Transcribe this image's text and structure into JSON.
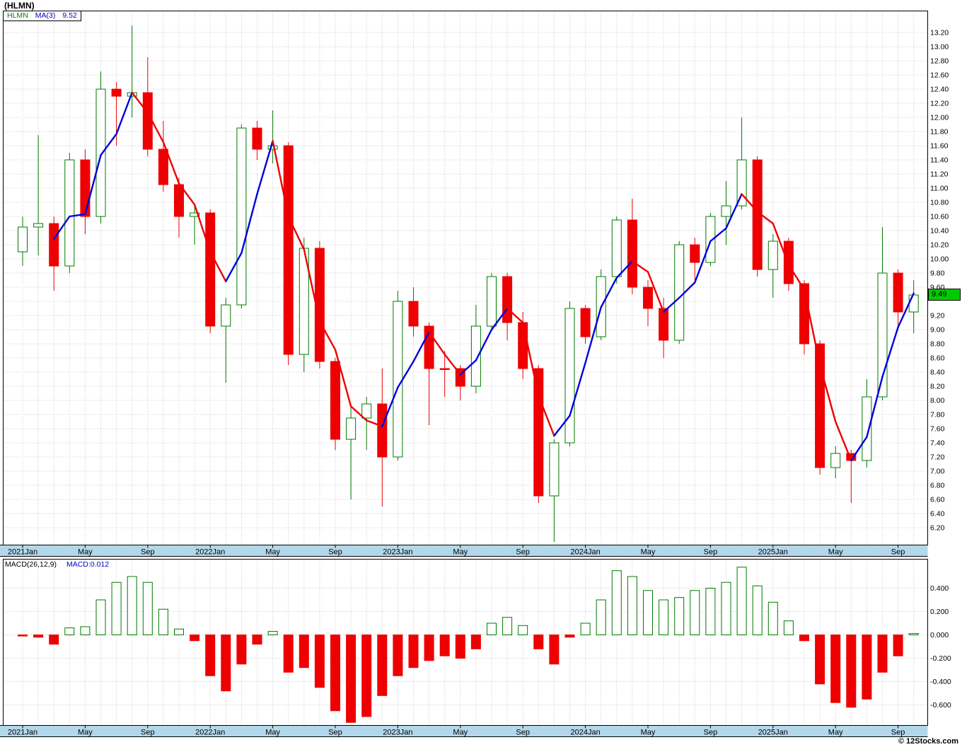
{
  "title": "(HLMN)",
  "legend": {
    "symbol": "HLMN",
    "ma_label": "MA(3)",
    "ma_value": "9.52"
  },
  "current_price_badge": "9.49",
  "macd_panel": {
    "legend_label": "MACD(26,12,9)",
    "legend_value": "MACD:0.012"
  },
  "copyright": "© 12Stocks.com",
  "colors": {
    "up": "#007a00",
    "down": "#ee0000",
    "ma_up": "#0000dd",
    "ma_down": "#ee0000",
    "band": "#b3d7ea",
    "grid": "#c9c9c9",
    "badge_bg": "#00cc00",
    "legend_symbol_green": "#008000",
    "legend_blue": "#0000cc"
  },
  "axes": {
    "price_tick_labels": [
      "13.20",
      "13.00",
      "12.80",
      "12.60",
      "12.40",
      "12.20",
      "12.00",
      "11.80",
      "11.60",
      "11.40",
      "11.20",
      "11.00",
      "10.80",
      "10.60",
      "10.40",
      "10.20",
      "10.00",
      "9.80",
      "9.60",
      "9.20",
      "9.00",
      "8.80",
      "8.60",
      "8.40",
      "8.20",
      "8.00",
      "7.80",
      "7.60",
      "7.40",
      "7.20",
      "7.00",
      "6.80",
      "6.60",
      "6.40",
      "6.20"
    ],
    "macd_tick_labels": [
      "0.400",
      "0.200",
      "0.000",
      "-0.200",
      "-0.400",
      "-0.600"
    ],
    "x_ticks": [
      {
        "label": "2021Jan",
        "month_index": 0
      },
      {
        "label": "May",
        "month_index": 4
      },
      {
        "label": "Sep",
        "month_index": 8
      },
      {
        "label": "2022Jan",
        "month_index": 12
      },
      {
        "label": "May",
        "month_index": 16
      },
      {
        "label": "Sep",
        "month_index": 20
      },
      {
        "label": "2023Jan",
        "month_index": 24
      },
      {
        "label": "May",
        "month_index": 28
      },
      {
        "label": "Sep",
        "month_index": 32
      },
      {
        "label": "2024Jan",
        "month_index": 36
      },
      {
        "label": "May",
        "month_index": 40
      },
      {
        "label": "Sep",
        "month_index": 44
      },
      {
        "label": "2025Jan",
        "month_index": 48
      },
      {
        "label": "May",
        "month_index": 52
      },
      {
        "label": "Sep",
        "month_index": 56
      }
    ]
  },
  "chart_data": [
    {
      "type": "candlestick",
      "name": "HLMN monthly price",
      "ylabel": "Price",
      "xlabel": "",
      "ylim": [
        5.96,
        13.51
      ],
      "grid": true,
      "x": [
        "2021-01",
        "2021-02",
        "2021-03",
        "2021-04",
        "2021-05",
        "2021-06",
        "2021-07",
        "2021-08",
        "2021-09",
        "2021-10",
        "2021-11",
        "2021-12",
        "2022-01",
        "2022-02",
        "2022-03",
        "2022-04",
        "2022-05",
        "2022-06",
        "2022-07",
        "2022-08",
        "2022-09",
        "2022-10",
        "2022-11",
        "2022-12",
        "2023-01",
        "2023-02",
        "2023-03",
        "2023-04",
        "2023-05",
        "2023-06",
        "2023-07",
        "2023-08",
        "2023-09",
        "2023-10",
        "2023-11",
        "2023-12",
        "2024-01",
        "2024-02",
        "2024-03",
        "2024-04",
        "2024-05",
        "2024-06",
        "2024-07",
        "2024-08",
        "2024-09",
        "2024-10",
        "2024-11",
        "2024-12",
        "2025-01",
        "2025-02",
        "2025-03",
        "2025-04",
        "2025-05",
        "2025-06",
        "2025-07",
        "2025-08",
        "2025-09",
        "2025-10"
      ],
      "ohlc": [
        [
          10.1,
          10.6,
          9.9,
          10.45
        ],
        [
          10.45,
          11.75,
          10.05,
          10.5
        ],
        [
          10.5,
          10.6,
          9.55,
          9.9
        ],
        [
          9.9,
          11.5,
          9.8,
          11.4
        ],
        [
          11.4,
          11.55,
          10.35,
          10.6
        ],
        [
          10.6,
          12.65,
          10.5,
          12.4
        ],
        [
          12.4,
          12.5,
          11.6,
          12.3
        ],
        [
          12.3,
          13.3,
          12.0,
          12.35
        ],
        [
          12.35,
          12.85,
          11.45,
          11.55
        ],
        [
          11.55,
          11.95,
          10.95,
          11.05
        ],
        [
          11.05,
          11.15,
          10.3,
          10.6
        ],
        [
          10.6,
          10.75,
          10.2,
          10.65
        ],
        [
          10.65,
          10.7,
          8.95,
          9.05
        ],
        [
          9.05,
          9.45,
          8.25,
          9.35
        ],
        [
          9.35,
          11.9,
          9.3,
          11.85
        ],
        [
          11.85,
          11.95,
          11.4,
          11.55
        ],
        [
          11.55,
          12.1,
          11.35,
          11.6
        ],
        [
          11.6,
          11.65,
          8.5,
          8.65
        ],
        [
          8.65,
          10.3,
          8.4,
          10.15
        ],
        [
          10.15,
          10.25,
          8.45,
          8.55
        ],
        [
          8.55,
          8.6,
          7.3,
          7.45
        ],
        [
          7.45,
          7.95,
          6.6,
          7.75
        ],
        [
          7.75,
          8.05,
          7.3,
          7.95
        ],
        [
          7.95,
          8.45,
          6.5,
          7.2
        ],
        [
          7.2,
          9.55,
          7.15,
          9.4
        ],
        [
          9.4,
          9.6,
          8.9,
          9.05
        ],
        [
          9.05,
          9.1,
          7.65,
          8.45
        ],
        [
          8.45,
          8.7,
          8.05,
          8.45
        ],
        [
          8.45,
          8.5,
          8.0,
          8.2
        ],
        [
          8.2,
          9.35,
          8.1,
          9.05
        ],
        [
          9.05,
          9.8,
          9.0,
          9.75
        ],
        [
          9.75,
          9.8,
          8.85,
          9.1
        ],
        [
          9.1,
          9.25,
          8.3,
          8.45
        ],
        [
          8.45,
          8.5,
          6.55,
          6.65
        ],
        [
          6.65,
          7.45,
          6.0,
          7.4
        ],
        [
          7.4,
          9.4,
          7.35,
          9.3
        ],
        [
          9.3,
          9.35,
          8.8,
          8.9
        ],
        [
          8.9,
          9.85,
          8.85,
          9.75
        ],
        [
          9.75,
          10.6,
          9.65,
          10.55
        ],
        [
          10.55,
          10.85,
          9.5,
          9.6
        ],
        [
          9.6,
          9.7,
          9.05,
          9.3
        ],
        [
          9.3,
          9.45,
          8.6,
          8.85
        ],
        [
          8.85,
          10.25,
          8.8,
          10.2
        ],
        [
          10.2,
          10.3,
          9.7,
          9.95
        ],
        [
          9.95,
          10.65,
          9.9,
          10.6
        ],
        [
          10.6,
          11.1,
          10.2,
          10.75
        ],
        [
          10.75,
          12.0,
          10.7,
          11.4
        ],
        [
          11.4,
          11.45,
          9.75,
          9.85
        ],
        [
          9.85,
          10.35,
          9.45,
          10.25
        ],
        [
          10.25,
          10.3,
          9.55,
          9.65
        ],
        [
          9.65,
          9.7,
          8.65,
          8.8
        ],
        [
          8.8,
          8.85,
          6.95,
          7.05
        ],
        [
          7.05,
          7.35,
          6.9,
          7.25
        ],
        [
          7.25,
          7.3,
          6.55,
          7.15
        ],
        [
          7.15,
          8.3,
          7.05,
          8.05
        ],
        [
          8.05,
          10.45,
          8.0,
          9.8
        ],
        [
          9.8,
          9.85,
          9.05,
          9.25
        ],
        [
          9.25,
          9.7,
          8.95,
          9.49
        ]
      ],
      "overlays": [
        {
          "name": "MA(3)",
          "kind": "sma",
          "window": 3,
          "last_value": 9.52,
          "up_color": "#0000dd",
          "down_color": "#ee0000"
        }
      ],
      "last_close": 9.49
    },
    {
      "type": "bar",
      "name": "MACD(26,12,9)",
      "x_ref": "same months as candlestick chart above",
      "ylim": [
        -0.78,
        0.65
      ],
      "grid": true,
      "last_value": 0.012,
      "values": [
        -0.01,
        -0.02,
        -0.08,
        0.06,
        0.07,
        0.3,
        0.45,
        0.5,
        0.45,
        0.22,
        0.05,
        -0.05,
        -0.35,
        -0.48,
        -0.25,
        -0.08,
        0.03,
        -0.32,
        -0.28,
        -0.45,
        -0.65,
        -0.75,
        -0.7,
        -0.52,
        -0.35,
        -0.28,
        -0.22,
        -0.18,
        -0.2,
        -0.12,
        0.1,
        0.15,
        0.08,
        -0.12,
        -0.25,
        -0.02,
        0.1,
        0.3,
        0.55,
        0.5,
        0.38,
        0.3,
        0.32,
        0.38,
        0.4,
        0.45,
        0.58,
        0.42,
        0.28,
        0.12,
        -0.05,
        -0.42,
        -0.58,
        -0.62,
        -0.55,
        -0.32,
        -0.18,
        0.012
      ]
    }
  ]
}
